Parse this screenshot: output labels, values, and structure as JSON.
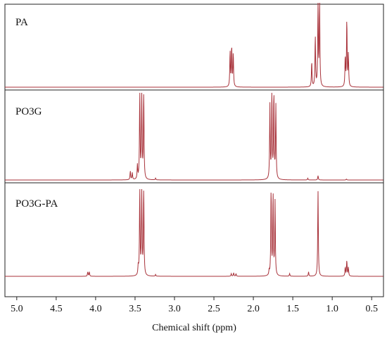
{
  "colors": {
    "trace": "#a8323a",
    "frame": "#222222"
  },
  "chart_data": {
    "type": "line",
    "xlabel": "Chemical shift (ppm)",
    "xlim": [
      5.15,
      0.35
    ],
    "x_reversed": true,
    "x_ticks": [
      {
        "value": 5.0,
        "label": "5.0"
      },
      {
        "value": 4.5,
        "label": "4.5"
      },
      {
        "value": 4.0,
        "label": "4.0"
      },
      {
        "value": 3.5,
        "label": "3.5"
      },
      {
        "value": 3.0,
        "label": "3.0"
      },
      {
        "value": 2.5,
        "label": "2.5"
      },
      {
        "value": 2.0,
        "label": "2.0"
      },
      {
        "value": 1.5,
        "label": "1.5"
      },
      {
        "value": 1.0,
        "label": "1.0"
      },
      {
        "value": 0.5,
        "label": "0.5"
      }
    ],
    "grid": false,
    "y_axis": "none",
    "stacked_panels": [
      {
        "label": "PA",
        "peaks": [
          {
            "shift": 2.295,
            "intensity": 0.42
          },
          {
            "shift": 2.275,
            "intensity": 0.48
          },
          {
            "shift": 2.255,
            "intensity": 0.4
          },
          {
            "shift": 1.26,
            "intensity": 0.3
          },
          {
            "shift": 1.215,
            "intensity": 0.6
          },
          {
            "shift": 1.18,
            "intensity": 1.0
          },
          {
            "shift": 1.16,
            "intensity": 1.0
          },
          {
            "shift": 0.835,
            "intensity": 0.35
          },
          {
            "shift": 0.815,
            "intensity": 0.8
          },
          {
            "shift": 0.795,
            "intensity": 0.38
          }
        ]
      },
      {
        "label": "PO3G",
        "peaks": [
          {
            "shift": 3.56,
            "intensity": 0.1
          },
          {
            "shift": 3.535,
            "intensity": 0.08
          },
          {
            "shift": 3.47,
            "intensity": 0.16
          },
          {
            "shift": 3.44,
            "intensity": 1.0
          },
          {
            "shift": 3.415,
            "intensity": 1.0
          },
          {
            "shift": 3.39,
            "intensity": 1.0
          },
          {
            "shift": 3.24,
            "intensity": 0.02
          },
          {
            "shift": 1.79,
            "intensity": 0.85
          },
          {
            "shift": 1.765,
            "intensity": 1.0
          },
          {
            "shift": 1.74,
            "intensity": 1.0
          },
          {
            "shift": 1.715,
            "intensity": 0.85
          },
          {
            "shift": 1.31,
            "intensity": 0.02
          },
          {
            "shift": 1.18,
            "intensity": 0.05
          },
          {
            "shift": 0.82,
            "intensity": 0.01
          }
        ]
      },
      {
        "label": "PO3G-PA",
        "peaks": [
          {
            "shift": 4.1,
            "intensity": 0.05
          },
          {
            "shift": 4.08,
            "intensity": 0.05
          },
          {
            "shift": 3.46,
            "intensity": 0.1
          },
          {
            "shift": 3.44,
            "intensity": 1.0
          },
          {
            "shift": 3.415,
            "intensity": 1.0
          },
          {
            "shift": 3.39,
            "intensity": 1.0
          },
          {
            "shift": 3.24,
            "intensity": 0.02
          },
          {
            "shift": 2.28,
            "intensity": 0.03
          },
          {
            "shift": 2.25,
            "intensity": 0.04
          },
          {
            "shift": 2.22,
            "intensity": 0.03
          },
          {
            "shift": 1.8,
            "intensity": 0.05
          },
          {
            "shift": 1.775,
            "intensity": 1.0
          },
          {
            "shift": 1.75,
            "intensity": 0.95
          },
          {
            "shift": 1.725,
            "intensity": 0.85
          },
          {
            "shift": 1.54,
            "intensity": 0.03
          },
          {
            "shift": 1.3,
            "intensity": 0.05
          },
          {
            "shift": 1.18,
            "intensity": 0.98
          },
          {
            "shift": 0.835,
            "intensity": 0.1
          },
          {
            "shift": 0.815,
            "intensity": 0.18
          },
          {
            "shift": 0.795,
            "intensity": 0.1
          }
        ]
      }
    ]
  }
}
